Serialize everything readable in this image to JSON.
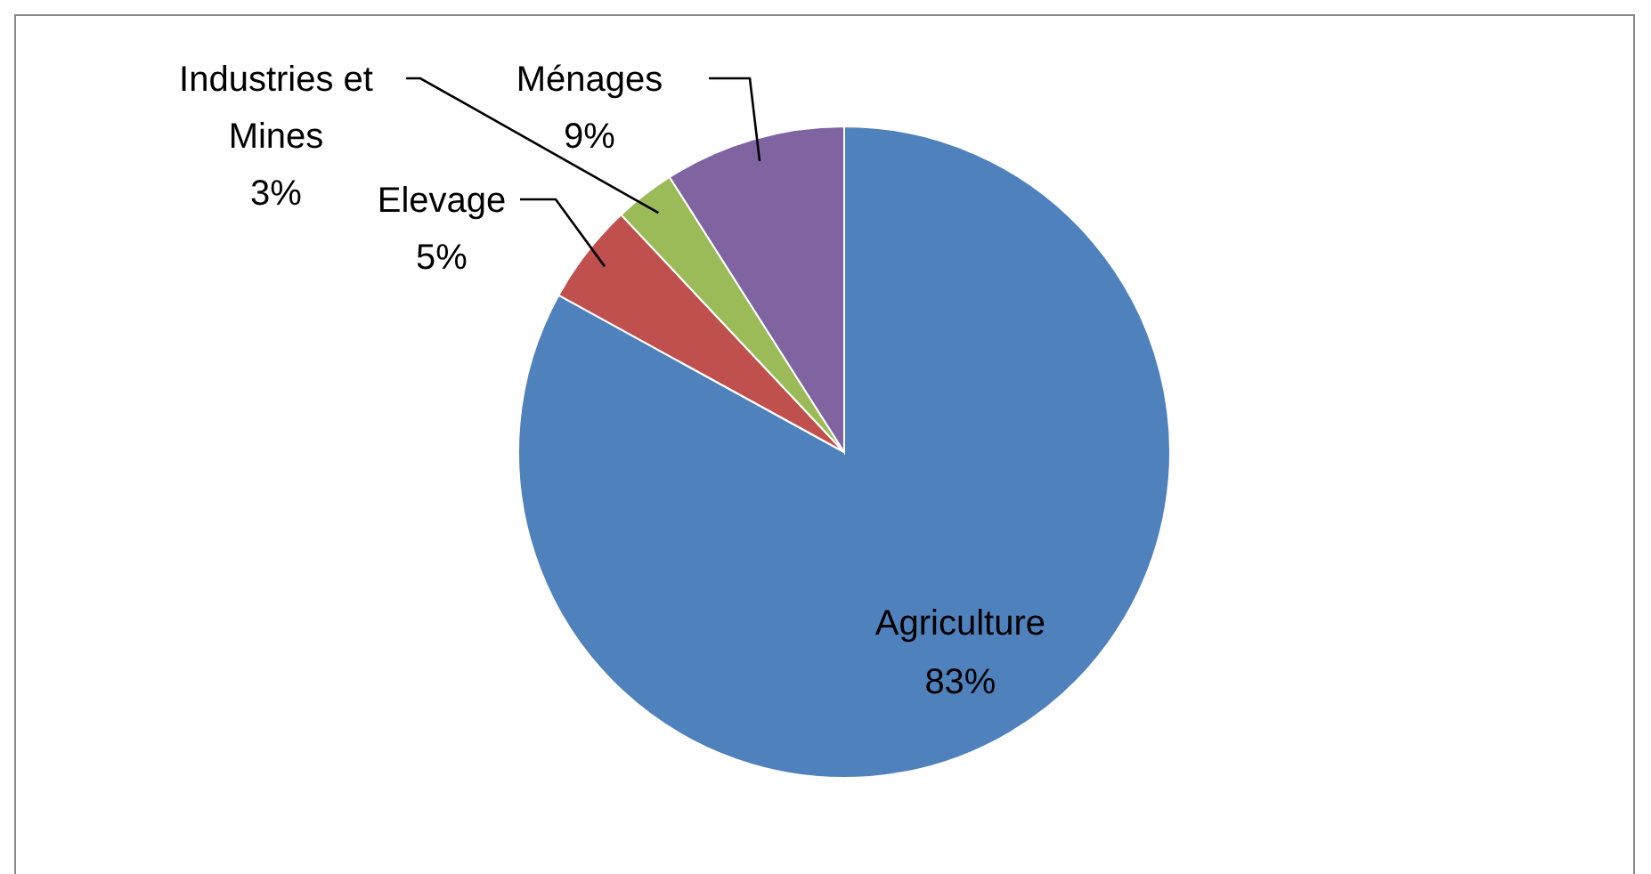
{
  "chart_data": {
    "type": "pie",
    "categories": [
      "Agriculture",
      "Elevage",
      "Industries et Mines",
      "Ménages"
    ],
    "values": [
      83,
      5,
      3,
      9
    ],
    "colors": [
      "#4f81bd",
      "#c0504d",
      "#9bbb59",
      "#8064a2"
    ],
    "value_labels": [
      "83%",
      "5%",
      "3%",
      "9%"
    ]
  }
}
